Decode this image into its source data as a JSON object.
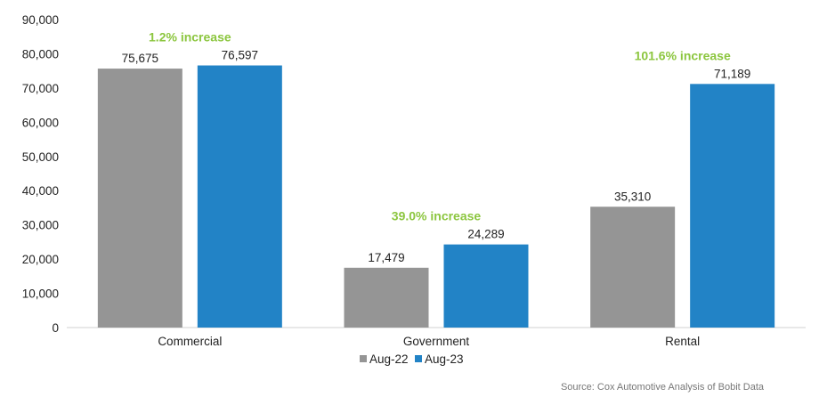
{
  "chart_data": {
    "type": "bar",
    "categories": [
      "Commercial",
      "Government",
      "Rental"
    ],
    "series": [
      {
        "name": "Aug-22",
        "color": "#959595",
        "values": [
          75675,
          17479,
          35310
        ],
        "labels": [
          "75,675",
          "17,479",
          "35,310"
        ]
      },
      {
        "name": "Aug-23",
        "color": "#2283c6",
        "values": [
          76597,
          24289,
          71189
        ],
        "labels": [
          "76,597",
          "24,289",
          "71,189"
        ]
      }
    ],
    "annotations": [
      "1.2% increase",
      "39.0% increase",
      "101.6% increase"
    ],
    "annotation_color": "#8cc63f",
    "ylim": [
      0,
      90000
    ],
    "yticks": [
      "0",
      "10,000",
      "20,000",
      "30,000",
      "40,000",
      "50,000",
      "60,000",
      "70,000",
      "80,000",
      "90,000"
    ],
    "grid": false,
    "legend": "bottom-center",
    "source": "Source: Cox Automotive Analysis of Bobit Data"
  }
}
